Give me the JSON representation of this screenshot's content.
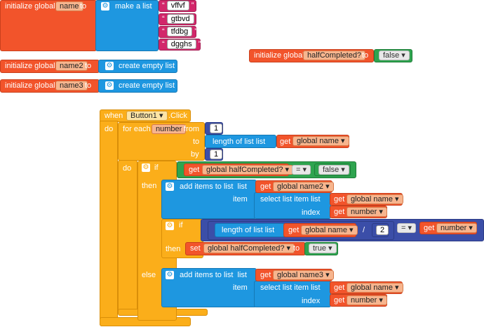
{
  "init_name": {
    "label": "initialize global",
    "var": "name",
    "to": "to",
    "make_list": "make a list",
    "items": [
      "vffvf",
      "gtbvd",
      "tfdbg",
      "dgghs"
    ]
  },
  "init_half": {
    "label": "initialize global",
    "var": "halfCompleted?",
    "to": "to",
    "value": "false"
  },
  "init_name2": {
    "label": "initialize global",
    "var": "name2",
    "to": "to",
    "value": "create empty list"
  },
  "init_name3": {
    "label": "initialize global",
    "var": "name3",
    "to": "to",
    "value": "create empty list"
  },
  "event": {
    "when": "when",
    "component": "Button1",
    "event": ".Click",
    "do": "do",
    "foreach": {
      "label": "for each",
      "var": "number",
      "from": "from",
      "from_val": "1",
      "to": "to",
      "length_label": "length of list  list",
      "get": "get",
      "list_var": "global name",
      "by": "by",
      "by_val": "1",
      "do": "do"
    },
    "if1": {
      "if": "if",
      "get": "get",
      "var": "global halfCompleted?",
      "op": "=",
      "value": "false",
      "then": "then",
      "else": "else"
    },
    "add2": {
      "label": "add items to list",
      "list": "list",
      "get": "get",
      "list_var": "global name2",
      "item": "item",
      "select": "select list item  list",
      "sel_var": "global name",
      "index": "index",
      "idx_var": "number"
    },
    "if2": {
      "if": "if",
      "length_label": "length of list  list",
      "get": "get",
      "list_var": "global name",
      "div": "/",
      "div_val": "2",
      "op": "=",
      "rhs_get": "get",
      "rhs_var": "number",
      "then": "then",
      "set": "set",
      "set_var": "global halfCompleted?",
      "to": "to",
      "set_val": "true"
    },
    "add3": {
      "label": "add items to list",
      "list": "list",
      "get": "get",
      "list_var": "global name3",
      "item": "item",
      "select": "select list item  list",
      "sel_var": "global name",
      "index": "index",
      "idx_var": "number"
    }
  },
  "colors": {
    "variables": "#f2542b",
    "lists": "#1e97e0",
    "control": "#fbae1a",
    "logic": "#2ea44f",
    "text": "#d2276a",
    "math": "#3b4ea8"
  }
}
